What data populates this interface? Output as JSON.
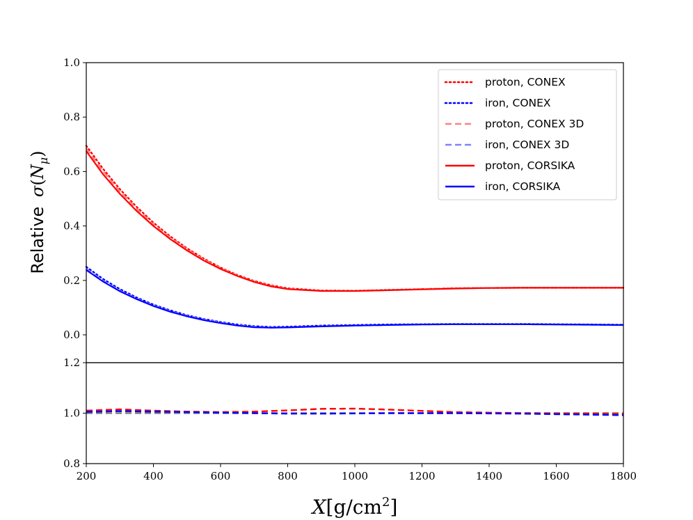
{
  "chart_data": [
    {
      "type": "line",
      "panel": "main",
      "ylabel_prefix": "Relative ",
      "ylabel_sigma": "σ",
      "ylabel_var": "N",
      "ylabel_sub": "μ",
      "xlim": [
        200,
        1800
      ],
      "ylim": [
        0.0,
        1.0
      ],
      "yticks": [
        "0.0",
        "0.2",
        "0.4",
        "0.6",
        "0.8",
        "1.0"
      ],
      "legend_position": "top-right",
      "series": [
        {
          "name": "proton, CONEX",
          "color": "#ff0000",
          "style": "dotted",
          "x": [
            200,
            250,
            300,
            350,
            400,
            450,
            500,
            550,
            600,
            650,
            700,
            750,
            800,
            900,
            1000,
            1100,
            1200,
            1300,
            1400,
            1500,
            1600,
            1700,
            1800
          ],
          "y": [
            0.695,
            0.61,
            0.535,
            0.47,
            0.412,
            0.362,
            0.318,
            0.28,
            0.247,
            0.22,
            0.198,
            0.182,
            0.171,
            0.163,
            0.162,
            0.165,
            0.168,
            0.171,
            0.172,
            0.173,
            0.173,
            0.173,
            0.173
          ]
        },
        {
          "name": "iron, CONEX",
          "color": "#0000ff",
          "style": "dotted",
          "x": [
            200,
            250,
            300,
            350,
            400,
            450,
            500,
            550,
            600,
            650,
            700,
            750,
            800,
            900,
            1000,
            1100,
            1200,
            1300,
            1400,
            1500,
            1600,
            1700,
            1800
          ],
          "y": [
            0.25,
            0.205,
            0.168,
            0.137,
            0.111,
            0.09,
            0.072,
            0.058,
            0.047,
            0.038,
            0.032,
            0.029,
            0.03,
            0.034,
            0.036,
            0.038,
            0.039,
            0.04,
            0.04,
            0.04,
            0.039,
            0.038,
            0.037
          ]
        },
        {
          "name": "proton, CONEX 3D",
          "color": "#ff8080",
          "style": "dashed",
          "x": [
            200,
            250,
            300,
            350,
            400,
            450,
            500,
            550,
            600,
            650,
            700,
            750,
            800,
            900,
            1000,
            1100,
            1200,
            1300,
            1400,
            1500,
            1600,
            1700,
            1800
          ],
          "y": [
            0.685,
            0.601,
            0.527,
            0.463,
            0.406,
            0.357,
            0.314,
            0.277,
            0.245,
            0.218,
            0.196,
            0.18,
            0.169,
            0.162,
            0.161,
            0.164,
            0.168,
            0.171,
            0.172,
            0.173,
            0.173,
            0.173,
            0.173
          ]
        },
        {
          "name": "iron, CONEX 3D",
          "color": "#8080ff",
          "style": "dashed",
          "x": [
            200,
            250,
            300,
            350,
            400,
            450,
            500,
            550,
            600,
            650,
            700,
            750,
            800,
            900,
            1000,
            1100,
            1200,
            1300,
            1400,
            1500,
            1600,
            1700,
            1800
          ],
          "y": [
            0.243,
            0.199,
            0.163,
            0.133,
            0.108,
            0.087,
            0.07,
            0.056,
            0.045,
            0.036,
            0.03,
            0.027,
            0.028,
            0.032,
            0.034,
            0.036,
            0.038,
            0.039,
            0.039,
            0.039,
            0.038,
            0.037,
            0.036
          ]
        },
        {
          "name": "proton, CORSIKA",
          "color": "#ff0000",
          "style": "solid",
          "x": [
            200,
            250,
            300,
            350,
            400,
            450,
            500,
            550,
            600,
            650,
            700,
            750,
            800,
            900,
            1000,
            1100,
            1200,
            1300,
            1400,
            1500,
            1600,
            1700,
            1800
          ],
          "y": [
            0.675,
            0.59,
            0.518,
            0.455,
            0.4,
            0.352,
            0.31,
            0.273,
            0.242,
            0.216,
            0.194,
            0.178,
            0.168,
            0.161,
            0.161,
            0.164,
            0.167,
            0.17,
            0.172,
            0.173,
            0.173,
            0.173,
            0.173
          ]
        },
        {
          "name": "iron, CORSIKA",
          "color": "#0000ff",
          "style": "solid",
          "x": [
            200,
            250,
            300,
            350,
            400,
            450,
            500,
            550,
            600,
            650,
            700,
            750,
            800,
            900,
            1000,
            1100,
            1200,
            1300,
            1400,
            1500,
            1600,
            1700,
            1800
          ],
          "y": [
            0.238,
            0.196,
            0.16,
            0.131,
            0.106,
            0.085,
            0.068,
            0.054,
            0.043,
            0.034,
            0.028,
            0.026,
            0.027,
            0.031,
            0.034,
            0.036,
            0.038,
            0.039,
            0.039,
            0.039,
            0.038,
            0.037,
            0.036
          ]
        }
      ]
    },
    {
      "type": "line",
      "panel": "ratio",
      "xlabel_var": "X",
      "xlabel_units": "[g/cm",
      "xlabel_sup": "2",
      "xlabel_close": "]",
      "xlim": [
        200,
        1800
      ],
      "ylim": [
        0.8,
        1.2
      ],
      "xticks": [
        "200",
        "400",
        "600",
        "800",
        "1000",
        "1200",
        "1400",
        "1600",
        "1800"
      ],
      "yticks": [
        "0.8",
        "1.0",
        "1.2"
      ],
      "series": [
        {
          "color": "#808080",
          "style": "dashed",
          "x": [
            200,
            400,
            600,
            800,
            1000,
            1200,
            1400,
            1600,
            1800
          ],
          "y": [
            1.0,
            1.0,
            1.0,
            1.0,
            1.0,
            1.0,
            1.0,
            1.0,
            1.0
          ]
        },
        {
          "color": "#ff0000",
          "style": "dashed",
          "x": [
            200,
            300,
            400,
            500,
            600,
            700,
            800,
            900,
            1000,
            1100,
            1200,
            1300,
            1400,
            1500,
            1600,
            1700,
            1800
          ],
          "y": [
            1.01,
            1.015,
            1.01,
            1.006,
            1.004,
            1.006,
            1.011,
            1.017,
            1.018,
            1.014,
            1.009,
            1.004,
            1.002,
            1.0,
            0.999,
            0.998,
            0.997
          ]
        },
        {
          "color": "#0000ff",
          "style": "dashed",
          "x": [
            200,
            300,
            400,
            500,
            600,
            700,
            800,
            900,
            1000,
            1100,
            1200,
            1300,
            1400,
            1500,
            1600,
            1700,
            1800
          ],
          "y": [
            1.005,
            1.008,
            1.006,
            1.004,
            1.002,
            1.0,
            0.998,
            0.998,
            0.999,
            1.0,
            1.0,
            1.0,
            0.999,
            0.998,
            0.996,
            0.994,
            0.992
          ]
        }
      ]
    }
  ]
}
